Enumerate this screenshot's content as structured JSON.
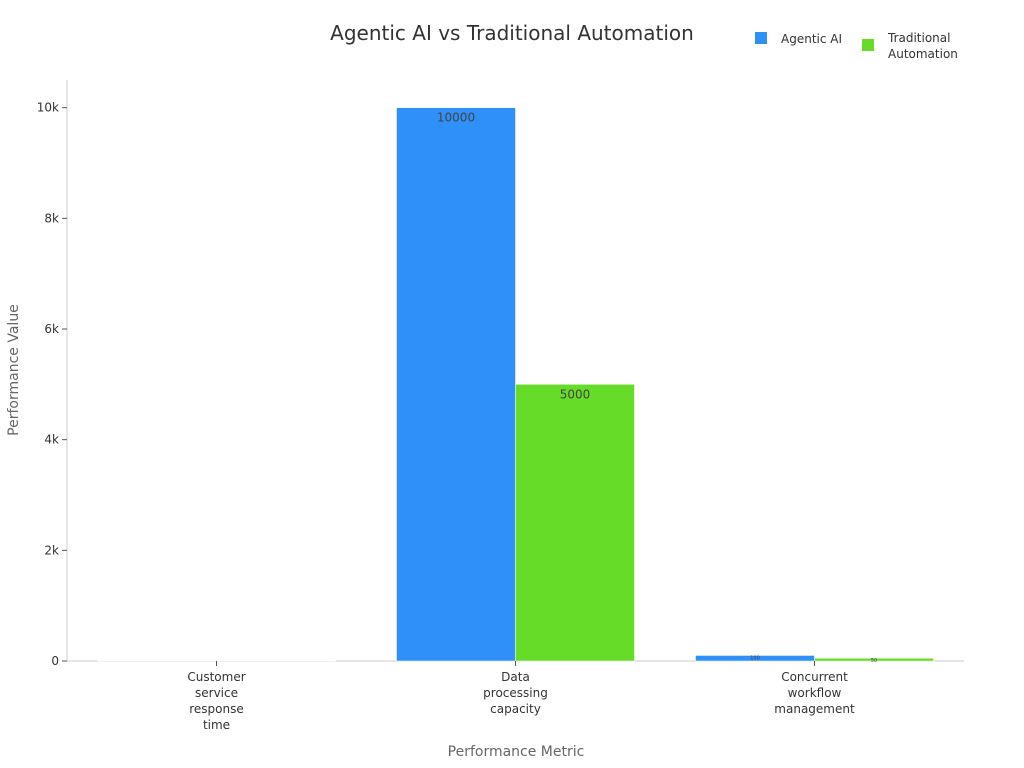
{
  "chart_data": {
    "type": "bar",
    "title": "Agentic AI vs Traditional Automation",
    "xlabel": "Performance Metric",
    "ylabel": "Performance Value",
    "categories": [
      [
        "Customer",
        "service",
        "response",
        "time"
      ],
      [
        "Data",
        "processing",
        "capacity"
      ],
      [
        "Concurrent",
        "workflow",
        "management"
      ]
    ],
    "series": [
      {
        "name": "Agentic AI",
        "color": "#2e90f8",
        "values": [
          1,
          10000,
          100
        ],
        "labels": [
          "",
          "10000",
          "100"
        ]
      },
      {
        "name": "Traditional Automation",
        "color": "#66dc29",
        "values": [
          1,
          5000,
          50
        ],
        "labels": [
          "",
          "5000",
          "50"
        ]
      }
    ],
    "legend_entries": [
      [
        "Agentic AI"
      ],
      [
        "Traditional",
        "Automation"
      ]
    ],
    "ylim": [
      0,
      10500
    ],
    "yticks": [
      0,
      2000,
      4000,
      6000,
      8000,
      10000
    ],
    "ytick_labels": [
      "0",
      "2k",
      "4k",
      "6k",
      "8k",
      "10k"
    ],
    "legend_position": "top-right",
    "grid": false
  }
}
